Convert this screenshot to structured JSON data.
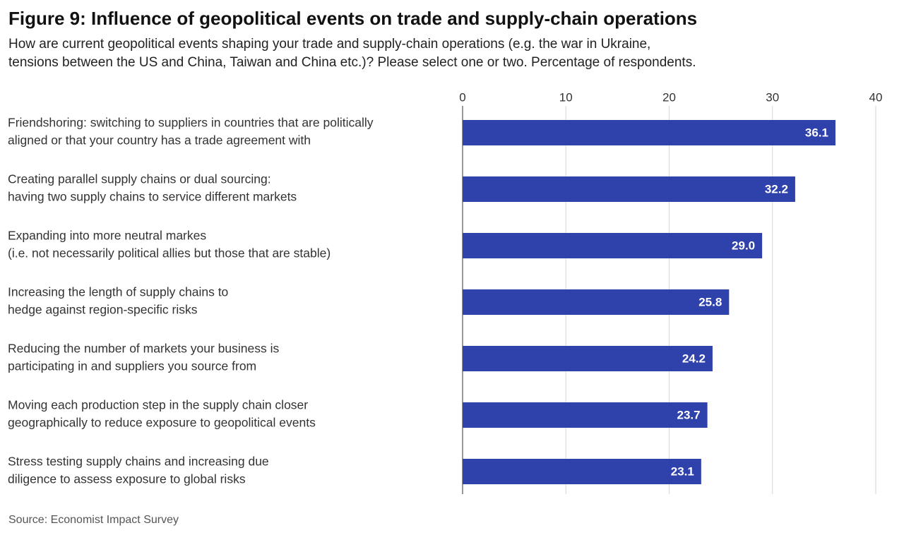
{
  "chart_data": {
    "type": "bar",
    "orientation": "horizontal",
    "title": "Figure 9: Influence of geopolitical events on trade and supply-chain operations",
    "subtitle": [
      "How are current geopolitical events shaping your trade and supply-chain operations (e.g. the war in Ukraine,",
      "tensions between the US and China, Taiwan and China etc.)? Please select one or two. Percentage of respondents."
    ],
    "categories": [
      [
        "Friendshoring: switching to suppliers in countries that are politically",
        "aligned or that your country has a trade agreement with"
      ],
      [
        "Creating parallel supply chains or dual sourcing:",
        "having two supply chains to service different markets"
      ],
      [
        "Expanding into more neutral markes",
        "(i.e. not necessarily political allies but those that are stable)"
      ],
      [
        "Increasing the length of supply chains to",
        "hedge against region-specific risks"
      ],
      [
        "Reducing the number of markets your business is",
        "participating in and suppliers you source from"
      ],
      [
        "Moving each production step in the supply chain closer",
        "geographically to reduce exposure to geopolitical events"
      ],
      [
        "Stress testing supply chains and increasing due",
        "diligence to assess exposure to global risks"
      ]
    ],
    "values": [
      36.1,
      32.2,
      29.0,
      25.8,
      24.2,
      23.7,
      23.1
    ],
    "value_labels": [
      "36.1",
      "32.2",
      "29.0",
      "25.8",
      "24.2",
      "23.7",
      "23.1"
    ],
    "color": "#2f41ab",
    "xlim": [
      0,
      40
    ],
    "xticks": [
      0,
      10,
      20,
      30,
      40
    ],
    "grid": true,
    "source": "Source: Economist Impact Survey"
  }
}
